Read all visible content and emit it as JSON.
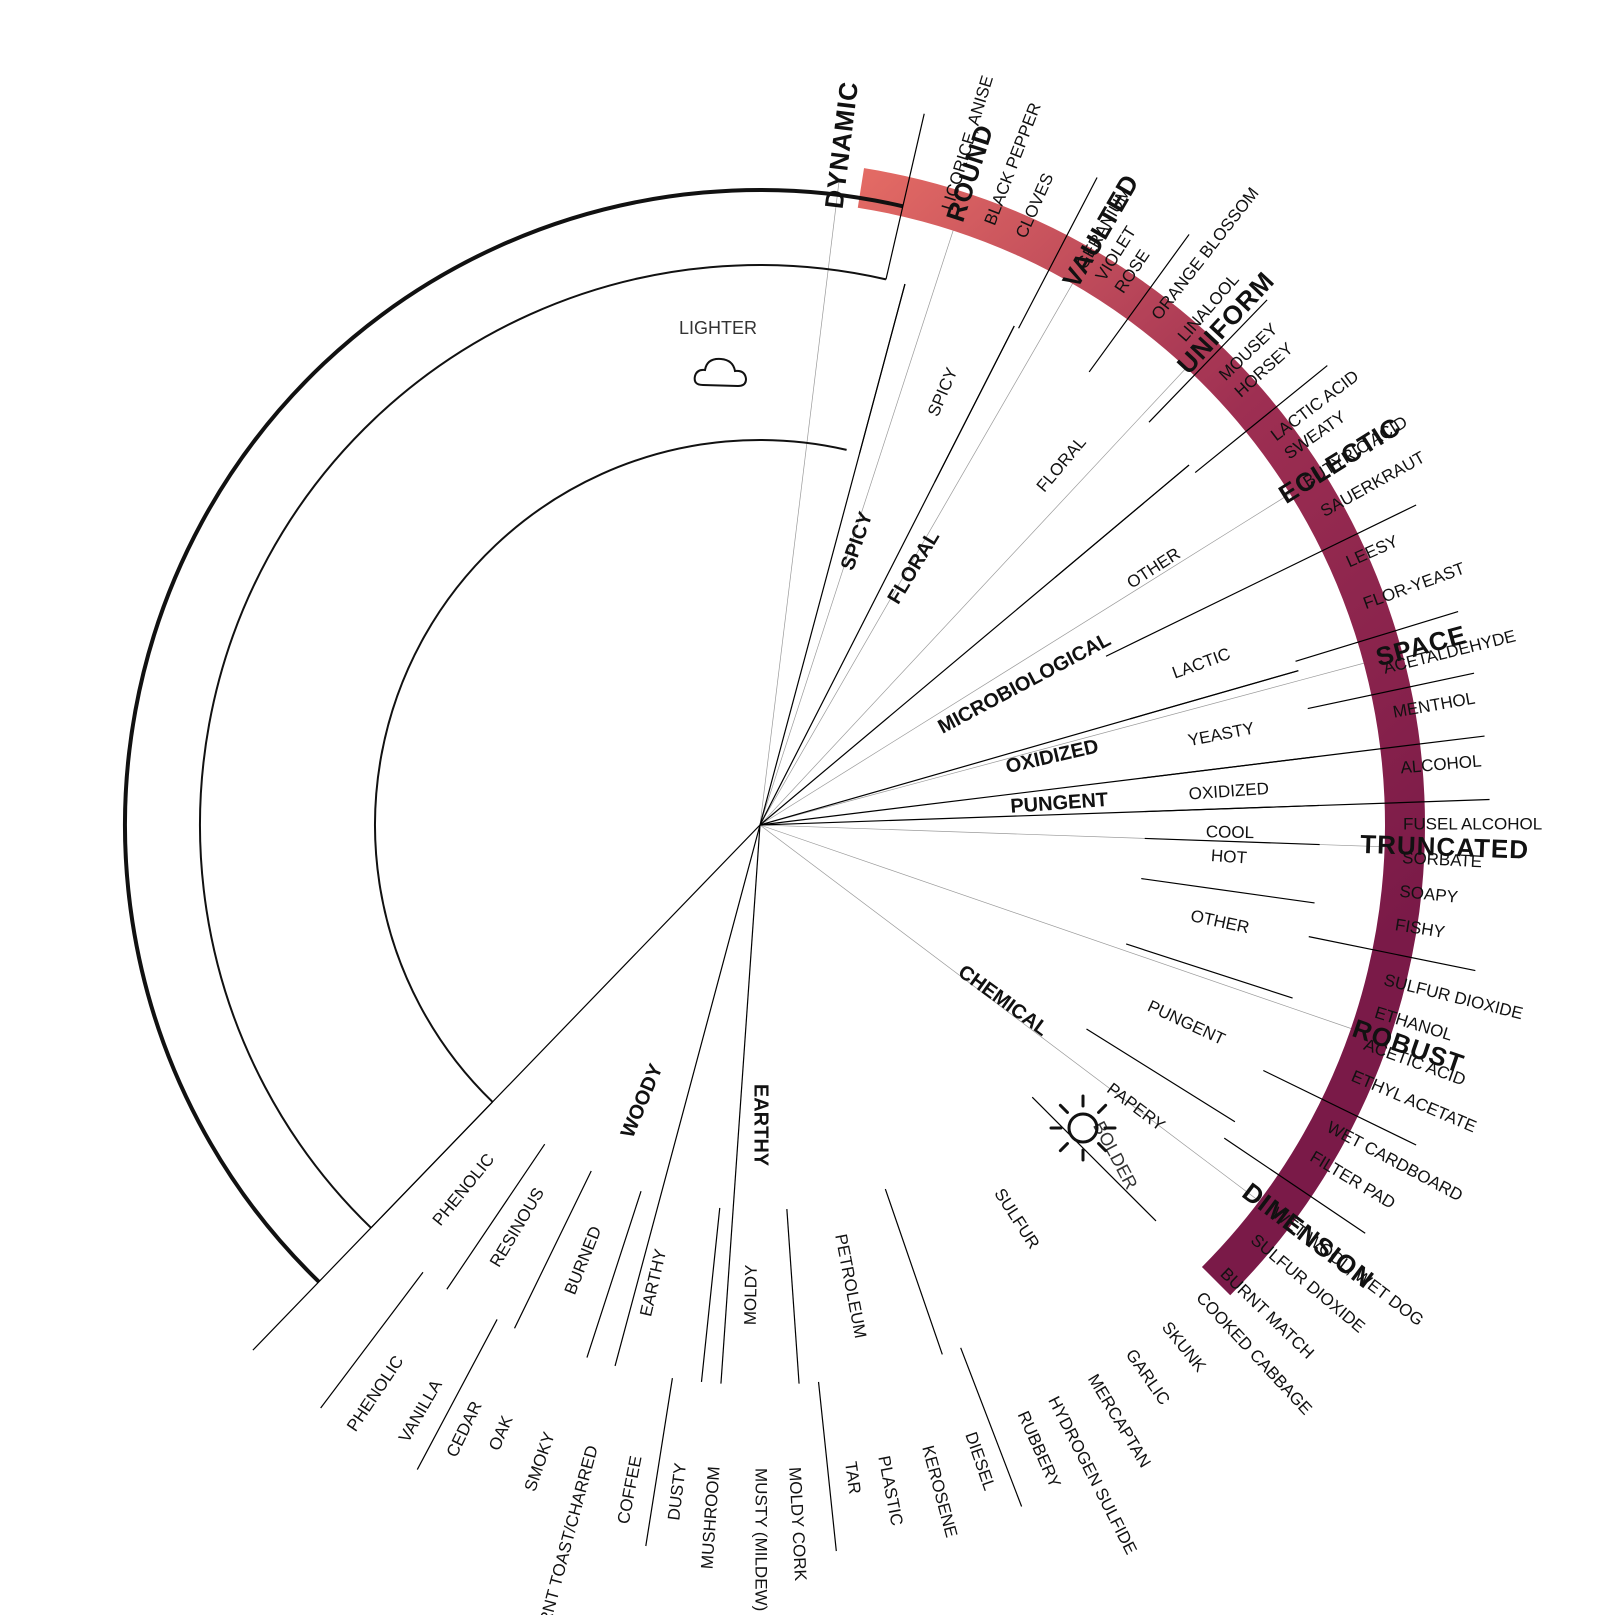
{
  "wheel": {
    "categories": [
      {
        "label": "SPICY",
        "angle": -71
      },
      {
        "label": "FLORAL",
        "angle": -59
      },
      {
        "label": "MICROBIOLOGICAL",
        "angle": -28
      },
      {
        "label": "OXIDIZED",
        "angle": -13
      },
      {
        "label": "PUNGENT",
        "angle": -4
      },
      {
        "label": "CHEMICAL",
        "angle": 36
      },
      {
        "label": "EARTHY",
        "angle": 90
      },
      {
        "label": "WOODY",
        "angle": 113
      }
    ],
    "subcategories": [
      {
        "label": "SPICY",
        "angle": -67
      },
      {
        "label": "FLORAL",
        "angle": -50
      },
      {
        "label": "OTHER",
        "angle": -33
      },
      {
        "label": "LACTIC",
        "angle": -20
      },
      {
        "label": "YEASTY",
        "angle": -11
      },
      {
        "label": "OXIDIZED",
        "angle": -4
      },
      {
        "label": "COOL",
        "angle": 1
      },
      {
        "label": "HOT",
        "angle": 4
      },
      {
        "label": "OTHER",
        "angle": 12
      },
      {
        "label": "PUNGENT",
        "angle": 25
      },
      {
        "label": "PAPERY",
        "angle": 37
      },
      {
        "label": "SULFUR",
        "angle": 57
      },
      {
        "label": "PETROLEUM",
        "angle": 79
      },
      {
        "label": "MOLDY",
        "angle": 91
      },
      {
        "label": "EARTHY",
        "angle": 103
      },
      {
        "label": "BURNED",
        "angle": 112
      },
      {
        "label": "RESINOUS",
        "angle": 121
      },
      {
        "label": "PHENOLIC",
        "angle": 129
      }
    ],
    "leaves": [
      {
        "label": "LICORICE, ANISE",
        "angle": -73
      },
      {
        "label": "BLACK PEPPER",
        "angle": -69
      },
      {
        "label": "CLOVES",
        "angle": -66
      },
      {
        "label": "GERANIUM",
        "angle": -60
      },
      {
        "label": "VIOLET",
        "angle": -58
      },
      {
        "label": "ROSE",
        "angle": -56
      },
      {
        "label": "ORANGE BLOSSOM",
        "angle": -52
      },
      {
        "label": "LINALOOL",
        "angle": -49
      },
      {
        "label": "MOUSEY",
        "angle": -44
      },
      {
        "label": "HORSEY",
        "angle": -42
      },
      {
        "label": "LACTIC ACID",
        "angle": -37
      },
      {
        "label": "SWEATY",
        "angle": -35
      },
      {
        "label": "BUTYRIC ACID",
        "angle": -32
      },
      {
        "label": "SAUERKRAUT",
        "angle": -29
      },
      {
        "label": "LEESY",
        "angle": -24
      },
      {
        "label": "FLOR-YEAST",
        "angle": -20
      },
      {
        "label": "ACETALDEHYDE",
        "angle": -14
      },
      {
        "label": "MENTHOL",
        "angle": -10
      },
      {
        "label": "ALCOHOL",
        "angle": -5
      },
      {
        "label": "FUSEL ALCOHOL",
        "angle": 0
      },
      {
        "label": "SORBATE",
        "angle": 3
      },
      {
        "label": "SOAPY",
        "angle": 6
      },
      {
        "label": "FISHY",
        "angle": 9
      },
      {
        "label": "SULFUR DIOXIDE",
        "angle": 14
      },
      {
        "label": "ETHANOL",
        "angle": 17
      },
      {
        "label": "ACETIC ACID",
        "angle": 20
      },
      {
        "label": "ETHYL ACETATE",
        "angle": 23
      },
      {
        "label": "WET CARDBOARD",
        "angle": 28
      },
      {
        "label": "FILTER PAD",
        "angle": 31
      },
      {
        "label": "WET WOOL, WET DOG",
        "angle": 37
      },
      {
        "label": "SULFUR DIOXIDE",
        "angle": 40
      },
      {
        "label": "BURNT MATCH",
        "angle": 44
      },
      {
        "label": "COOKED CABBAGE",
        "angle": 47
      },
      {
        "label": "SKUNK",
        "angle": 51
      },
      {
        "label": "GARLIC",
        "angle": 55
      },
      {
        "label": "MERCAPTAN",
        "angle": 59
      },
      {
        "label": "HYDROGEN SULFIDE",
        "angle": 63
      },
      {
        "label": "RUBBERY",
        "angle": 66
      },
      {
        "label": "DIESEL",
        "angle": 71
      },
      {
        "label": "KEROSENE",
        "angle": 75
      },
      {
        "label": "PLASTIC",
        "angle": 79
      },
      {
        "label": "TAR",
        "angle": 82
      },
      {
        "label": "MOLDY CORK",
        "angle": 87
      },
      {
        "label": "MUSTY (MILDEW)",
        "angle": 90
      },
      {
        "label": "MUSHROOM",
        "angle": 94
      },
      {
        "label": "DUSTY",
        "angle": 97
      },
      {
        "label": "COFFEE",
        "angle": 101
      },
      {
        "label": "BURNT TOAST/CHARRED",
        "angle": 105
      },
      {
        "label": "SMOKY",
        "angle": 109
      },
      {
        "label": "OAK",
        "angle": 113
      },
      {
        "label": "CEDAR",
        "angle": 116
      },
      {
        "label": "VANILLA",
        "angle": 120
      },
      {
        "label": "PHENOLIC",
        "angle": 124
      }
    ],
    "category_boundaries": [
      -75,
      -63,
      -40,
      -16,
      -7,
      -2,
      94,
      105,
      134
    ],
    "sub_boundaries": [
      -75,
      -63,
      -40,
      -26,
      -16,
      -7,
      -2,
      2,
      8,
      18,
      32,
      45,
      71,
      86,
      96,
      108,
      116,
      124,
      134
    ],
    "leaf_boundaries": [
      -77,
      -62.5,
      -54,
      -46,
      -39,
      -26,
      -17,
      -12,
      -7,
      -2,
      11.5,
      26,
      34,
      69,
      84,
      99,
      118,
      127,
      134
    ]
  },
  "styles": [
    {
      "label": "DYNAMIC",
      "angle": -83
    },
    {
      "label": "ROUND",
      "angle": -72
    },
    {
      "label": "VAULTED",
      "angle": -60
    },
    {
      "label": "UNIFORM",
      "angle": -47
    },
    {
      "label": "ECLECTIC",
      "angle": -32
    },
    {
      "label": "SPACE",
      "angle": -15
    },
    {
      "label": "TRUNCATED",
      "angle": 2
    },
    {
      "label": "ROBUST",
      "angle": 19
    },
    {
      "label": "DIMENSION",
      "angle": 37
    }
  ],
  "scale": {
    "start_label": "LIGHTER",
    "end_label": "BOLDER",
    "start_icon": "cloud-icon",
    "end_icon": "sun-icon",
    "colors": {
      "start": "#ee7467",
      "mid": "#9e2f52",
      "end": "#7a1a48"
    }
  }
}
